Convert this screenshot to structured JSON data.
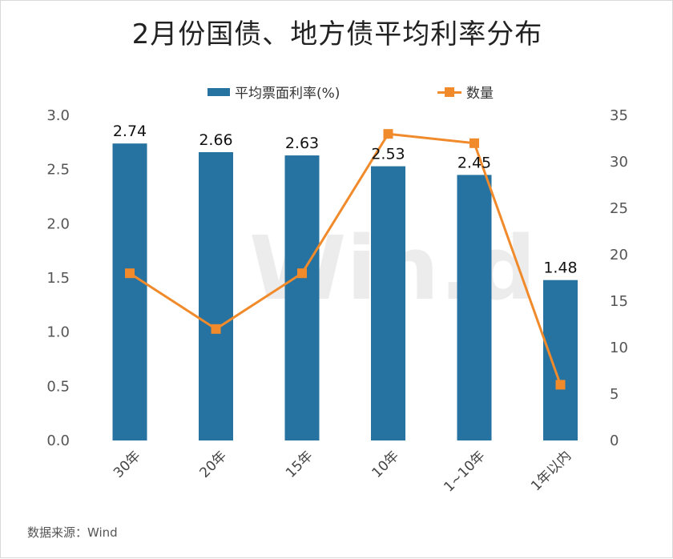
{
  "title": "2月份国债、地方债平均利率分布",
  "legend": {
    "bar_label": "平均票面利率(%)",
    "line_label": "数量"
  },
  "source": "数据来源：Wind",
  "watermark": "Win.d",
  "colors": {
    "bar": "#2672a0",
    "line": "#f08a2b"
  },
  "chart_data": {
    "type": "bar",
    "title": "2月份国债、地方债平均利率分布",
    "categories": [
      "30年",
      "20年",
      "15年",
      "10年",
      "1~10年",
      "1年以内"
    ],
    "series": [
      {
        "name": "平均票面利率(%)",
        "type": "bar",
        "axis": "left",
        "values": [
          2.74,
          2.66,
          2.63,
          2.53,
          2.45,
          1.48
        ]
      },
      {
        "name": "数量",
        "type": "line",
        "axis": "right",
        "values": [
          18,
          12,
          18,
          33,
          32,
          6
        ]
      }
    ],
    "ylim_left": [
      0,
      3.0
    ],
    "yticks_left": [
      "0.0",
      "0.5",
      "1.0",
      "1.5",
      "2.0",
      "2.5",
      "3.0"
    ],
    "ylim_right": [
      0,
      35
    ],
    "yticks_right": [
      "0",
      "5",
      "10",
      "15",
      "20",
      "25",
      "30",
      "35"
    ],
    "data_labels": [
      "2.74",
      "2.66",
      "2.63",
      "2.53",
      "2.45",
      "1.48"
    ],
    "legend_position": "top",
    "grid": false
  }
}
